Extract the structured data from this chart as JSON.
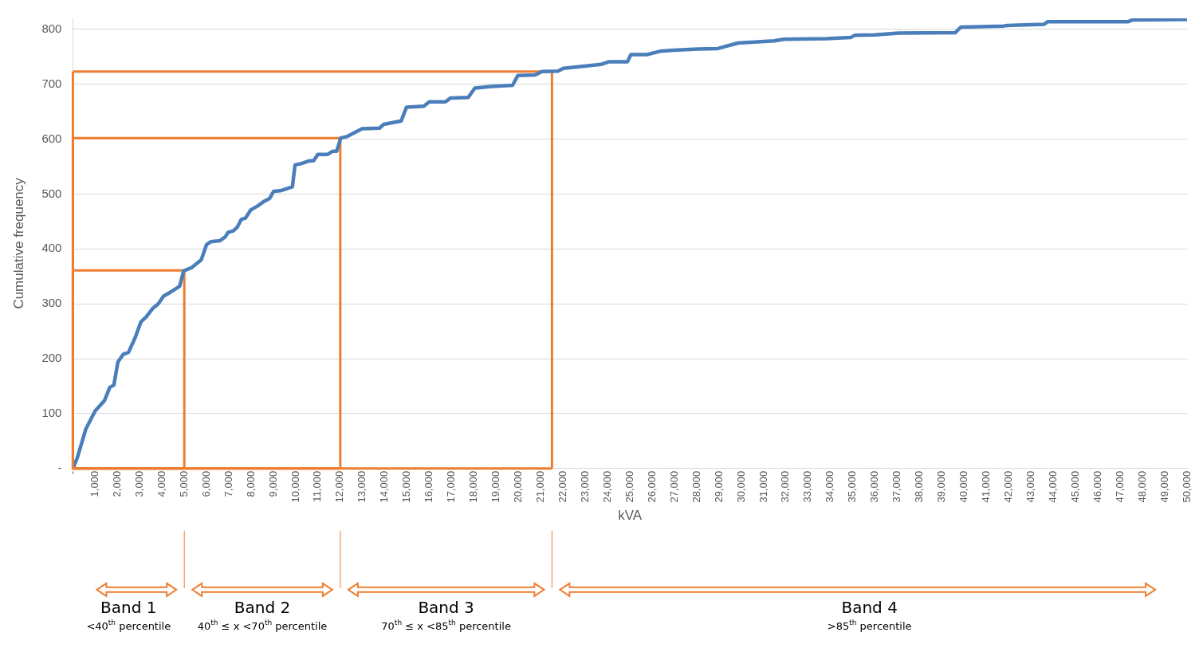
{
  "chart_data": {
    "type": "line",
    "xlabel": "kVA",
    "ylabel": "Cumulative frequency",
    "xlim": [
      0,
      50000
    ],
    "ylim": [
      0,
      820
    ],
    "xticks": [
      {
        "value": 0,
        "label": "-"
      },
      {
        "value": 1000,
        "label": "1,000"
      },
      {
        "value": 2000,
        "label": "2,000"
      },
      {
        "value": 3000,
        "label": "3,000"
      },
      {
        "value": 4000,
        "label": "4,000"
      },
      {
        "value": 5000,
        "label": "5,000"
      },
      {
        "value": 6000,
        "label": "6,000"
      },
      {
        "value": 7000,
        "label": "7,000"
      },
      {
        "value": 8000,
        "label": "8,000"
      },
      {
        "value": 9000,
        "label": "9,000"
      },
      {
        "value": 10000,
        "label": "10,000"
      },
      {
        "value": 11000,
        "label": "11,000"
      },
      {
        "value": 12000,
        "label": "12,000"
      },
      {
        "value": 13000,
        "label": "13,000"
      },
      {
        "value": 14000,
        "label": "14,000"
      },
      {
        "value": 15000,
        "label": "15,000"
      },
      {
        "value": 16000,
        "label": "16,000"
      },
      {
        "value": 17000,
        "label": "17,000"
      },
      {
        "value": 18000,
        "label": "18,000"
      },
      {
        "value": 19000,
        "label": "19,000"
      },
      {
        "value": 20000,
        "label": "20,000"
      },
      {
        "value": 21000,
        "label": "21,000"
      },
      {
        "value": 22000,
        "label": "22,000"
      },
      {
        "value": 23000,
        "label": "23,000"
      },
      {
        "value": 24000,
        "label": "24,000"
      },
      {
        "value": 25000,
        "label": "25,000"
      },
      {
        "value": 26000,
        "label": "26,000"
      },
      {
        "value": 27000,
        "label": "27,000"
      },
      {
        "value": 28000,
        "label": "28,000"
      },
      {
        "value": 29000,
        "label": "29,000"
      },
      {
        "value": 30000,
        "label": "30,000"
      },
      {
        "value": 31000,
        "label": "31,000"
      },
      {
        "value": 32000,
        "label": "32,000"
      },
      {
        "value": 33000,
        "label": "33,000"
      },
      {
        "value": 34000,
        "label": "34,000"
      },
      {
        "value": 35000,
        "label": "35,000"
      },
      {
        "value": 36000,
        "label": "36,000"
      },
      {
        "value": 37000,
        "label": "37,000"
      },
      {
        "value": 38000,
        "label": "38,000"
      },
      {
        "value": 39000,
        "label": "39,000"
      },
      {
        "value": 40000,
        "label": "40,000"
      },
      {
        "value": 41000,
        "label": "41,000"
      },
      {
        "value": 42000,
        "label": "42,000"
      },
      {
        "value": 43000,
        "label": "43,000"
      },
      {
        "value": 44000,
        "label": "44,000"
      },
      {
        "value": 45000,
        "label": "45,000"
      },
      {
        "value": 46000,
        "label": "46,000"
      },
      {
        "value": 47000,
        "label": "47,000"
      },
      {
        "value": 48000,
        "label": "48,000"
      },
      {
        "value": 49000,
        "label": "49,000"
      },
      {
        "value": 50000,
        "label": "50,000"
      }
    ],
    "yticks": [
      {
        "value": 0,
        "label": "-"
      },
      100,
      200,
      300,
      400,
      500,
      600,
      700,
      800
    ],
    "grid": "y",
    "legend": false,
    "marker": "none",
    "line_style": "solid",
    "series": [
      {
        "color": "#4a7ebb",
        "x": [
          0,
          200,
          580,
          1000,
          1420,
          1660,
          1840,
          2020,
          2260,
          2500,
          2800,
          3050,
          3290,
          3590,
          3830,
          4070,
          4370,
          4790,
          4970,
          5330,
          5760,
          6000,
          6180,
          6600,
          6840,
          6960,
          7200,
          7380,
          7560,
          7740,
          7980,
          8280,
          8590,
          8830,
          9010,
          9310,
          9610,
          9850,
          9970,
          10210,
          10570,
          10810,
          10990,
          11420,
          11660,
          11840,
          12020,
          12320,
          12980,
          13760,
          13950,
          14730,
          14970,
          15750,
          15990,
          16720,
          16950,
          17740,
          18040,
          18760,
          19730,
          19970,
          20750,
          21050,
          21770,
          22010,
          23700,
          24060,
          24890,
          25040,
          25760,
          26340,
          26950,
          28040,
          28940,
          29840,
          31470,
          31900,
          33820,
          34900,
          35080,
          35980,
          37070,
          39600,
          39850,
          41760,
          41940,
          43570,
          43750,
          47360,
          47540,
          49710,
          50000
        ],
        "values": [
          0,
          20,
          72,
          105,
          124,
          148,
          152,
          194,
          208,
          212,
          239,
          267,
          276,
          292,
          300,
          314,
          321,
          332,
          360,
          366,
          380,
          408,
          413,
          415,
          422,
          430,
          433,
          440,
          454,
          456,
          471,
          478,
          487,
          492,
          505,
          506,
          510,
          513,
          553,
          555,
          560,
          561,
          572,
          572,
          578,
          578,
          602,
          605,
          619,
          620,
          627,
          633,
          658,
          660,
          668,
          668,
          675,
          676,
          693,
          696,
          698,
          716,
          717,
          723,
          724,
          729,
          736,
          741,
          741,
          754,
          754,
          760,
          762,
          764,
          765,
          775,
          779,
          782,
          783,
          785,
          789,
          790,
          793,
          794,
          804,
          806,
          807,
          809,
          814,
          814,
          817,
          818,
          818
        ]
      },
      {
        "color": "#ed7d31",
        "x": [
          0,
          5000,
          5000
        ],
        "values": [
          361,
          361,
          0
        ]
      },
      {
        "color": "#ed7d31",
        "x": [
          0,
          12000,
          12000
        ],
        "values": [
          602,
          602,
          0
        ]
      },
      {
        "color": "#ed7d31",
        "x": [
          0,
          21500,
          21500
        ],
        "values": [
          723,
          723,
          0
        ]
      }
    ],
    "annotations": [
      "Band 1",
      "<40$^{th}$ percentile",
      "Band 2",
      "40$^{th}$ ≤ x <70$^{th}$ percentile",
      "Band 3",
      "70$^{th}$ ≤ x <85$^{th}$ percentile",
      "Band 4",
      ">85$^{th}$ percentile"
    ]
  }
}
